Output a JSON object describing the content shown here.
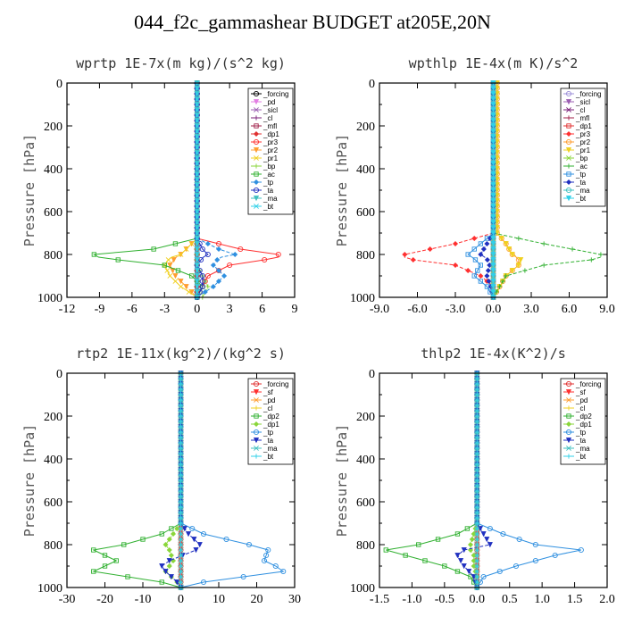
{
  "title": "044_f2c_gammashear  BUDGET at205E,20N",
  "chart_data": [
    {
      "type": "line",
      "title": "wprtp  1E-7x(m kg)/(s^2 kg)",
      "ylabel": "Pressure [hPa]",
      "xlim": [
        -12,
        9
      ],
      "xticks": [
        "-12",
        "-9",
        "-6",
        "-3",
        "0",
        "3",
        "6",
        "9"
      ],
      "xtick_values": [
        -12,
        -9,
        -6,
        -3,
        0,
        3,
        6,
        9
      ],
      "ylim": [
        0,
        1000
      ],
      "yticks": [
        "0",
        "200",
        "400",
        "600",
        "800",
        "1000"
      ],
      "legend_position": "top-right",
      "p": [
        725,
        775,
        800,
        815,
        850,
        900,
        950,
        1000
      ],
      "series": [
        {
          "name": "_forcing",
          "color": "#000000",
          "values": [
            0,
            0,
            0,
            0,
            0,
            0,
            0,
            0
          ]
        },
        {
          "name": "_pd",
          "color": "#e37fe3",
          "values": [
            0,
            0,
            0,
            0,
            0,
            0,
            0,
            0
          ]
        },
        {
          "name": "_sicl",
          "color": "#9c5fb3",
          "values": [
            0,
            0,
            0,
            0,
            0,
            0,
            0,
            0
          ]
        },
        {
          "name": "_cl",
          "color": "#7a1f7a",
          "values": [
            0,
            0,
            0,
            0,
            0,
            0,
            0,
            0
          ]
        },
        {
          "name": "_mfl",
          "color": "#a0204a",
          "values": [
            0,
            0,
            0,
            0,
            0,
            0,
            0,
            0
          ]
        },
        {
          "name": "_dp1",
          "color": "#e03030",
          "values": [
            0,
            0,
            0,
            0,
            0,
            0,
            0,
            0
          ]
        },
        {
          "name": "_pr3",
          "color": "#ff3030",
          "values": [
            0,
            4,
            7.5,
            7.5,
            3,
            1,
            0.5,
            0
          ]
        },
        {
          "name": "_pr2",
          "color": "#ff9d30",
          "values": [
            0,
            -1,
            -1.5,
            -2,
            -2.5,
            -2,
            -1,
            0
          ]
        },
        {
          "name": "_pr1",
          "color": "#f0d020",
          "values": [
            0,
            -1,
            -1.5,
            -2.5,
            -3,
            -2.5,
            -1.5,
            0
          ]
        },
        {
          "name": "_bp",
          "color": "#8ad63a",
          "values": [
            0,
            0,
            0,
            0,
            0,
            0.5,
            1,
            0.5
          ]
        },
        {
          "name": "_ac",
          "color": "#30b030",
          "values": [
            0,
            -4,
            -9.5,
            -9,
            -3,
            -0.5,
            0.5,
            0
          ]
        },
        {
          "name": "_tp",
          "color": "#3090e0",
          "values": [
            0,
            2,
            3.5,
            2,
            1.5,
            2.5,
            1.5,
            0
          ]
        },
        {
          "name": "_ta",
          "color": "#2030c0",
          "values": [
            0,
            0.5,
            1,
            0.5,
            0,
            0.5,
            0.5,
            0
          ]
        },
        {
          "name": "_ma",
          "color": "#40c0c0",
          "values": [
            0,
            0,
            0,
            0,
            0,
            0,
            0,
            0
          ]
        },
        {
          "name": "_bt",
          "color": "#30d0e8",
          "values": [
            0,
            0,
            0,
            0,
            0,
            0,
            0,
            0
          ]
        }
      ]
    },
    {
      "type": "line",
      "title": "wpthlp  1E-4x(m K)/s^2",
      "ylabel": "Pressure [hPa]",
      "xlim": [
        -9,
        9
      ],
      "xticks": [
        "-9.0",
        "-6.0",
        "-3.0",
        "0.0",
        "3.0",
        "6.0",
        "9.0"
      ],
      "xtick_values": [
        -9,
        -6,
        -3,
        0,
        3,
        6,
        9
      ],
      "ylim": [
        0,
        1000
      ],
      "yticks": [
        "0",
        "200",
        "400",
        "600",
        "800",
        "1000"
      ],
      "legend_position": "top-right",
      "p": [
        700,
        750,
        800,
        820,
        850,
        900,
        950,
        1000
      ],
      "series": [
        {
          "name": "_forcing",
          "color": "#9c8fd8",
          "values": [
            0,
            0,
            0,
            0,
            0,
            0,
            0,
            0
          ]
        },
        {
          "name": "_sicl",
          "color": "#9c5fb3",
          "values": [
            0,
            0,
            0,
            0,
            0,
            0,
            0,
            0
          ]
        },
        {
          "name": "_cl",
          "color": "#7a1f7a",
          "values": [
            0,
            0,
            0,
            0,
            0,
            0,
            0,
            0
          ]
        },
        {
          "name": "_mfl",
          "color": "#a0204a",
          "values": [
            0,
            0,
            0,
            0,
            0,
            0,
            0,
            0
          ]
        },
        {
          "name": "_dp1",
          "color": "#e03030",
          "values": [
            0,
            0,
            0,
            0,
            0,
            0,
            0,
            0
          ]
        },
        {
          "name": "_pr3",
          "color": "#ff3030",
          "values": [
            0,
            -3,
            -7,
            -7,
            -3,
            -1,
            0,
            0
          ]
        },
        {
          "name": "_pr2",
          "color": "#ff9d30",
          "values": [
            0.3,
            1,
            1.5,
            2,
            2,
            1,
            0.5,
            0
          ]
        },
        {
          "name": "_pr1",
          "color": "#f0d020",
          "values": [
            0.3,
            1,
            1.5,
            2.2,
            2,
            1,
            0.5,
            0
          ]
        },
        {
          "name": "_bp",
          "color": "#8ad63a",
          "values": [
            0,
            0,
            0,
            0,
            0,
            0,
            0,
            0
          ]
        },
        {
          "name": "_ac",
          "color": "#30b030",
          "values": [
            0,
            4,
            8.5,
            8.5,
            4,
            1,
            0.5,
            0
          ]
        },
        {
          "name": "_tp",
          "color": "#3090e0",
          "values": [
            0,
            -1,
            -2,
            -1.5,
            -1,
            -1.5,
            -0.5,
            0
          ]
        },
        {
          "name": "_ta",
          "color": "#2030c0",
          "values": [
            0,
            -0.5,
            -1,
            -0.5,
            -0.3,
            -0.5,
            -0.2,
            0
          ]
        },
        {
          "name": "_ma",
          "color": "#40c0c0",
          "values": [
            0,
            0,
            0,
            0,
            0,
            0,
            0,
            0
          ]
        },
        {
          "name": "_bt",
          "color": "#30d0e8",
          "values": [
            0,
            0,
            0,
            0,
            0,
            0,
            0,
            0
          ]
        }
      ]
    },
    {
      "type": "line",
      "title": "rtp2  1E-11x(kg^2)/(kg^2 s)",
      "ylabel": "Pressure [hPa]",
      "xlim": [
        -30,
        30
      ],
      "xticks": [
        "-30",
        "-20",
        "-10",
        "0",
        "10",
        "20",
        "30"
      ],
      "xtick_values": [
        -30,
        -20,
        -10,
        0,
        10,
        20,
        30
      ],
      "ylim": [
        0,
        1000
      ],
      "yticks": [
        "0",
        "200",
        "400",
        "600",
        "800",
        "1000"
      ],
      "legend_position": "top-right",
      "p": [
        700,
        750,
        800,
        825,
        875,
        900,
        925,
        975,
        1000
      ],
      "series": [
        {
          "name": "_forcing",
          "color": "#e03030",
          "values": [
            0,
            0,
            0,
            0,
            0,
            0,
            0,
            0,
            0
          ]
        },
        {
          "name": "_sf",
          "color": "#ff3030",
          "values": [
            0,
            0,
            0,
            0,
            0,
            0,
            0,
            0,
            0
          ]
        },
        {
          "name": "_pd",
          "color": "#ff9d30",
          "values": [
            0,
            0,
            0,
            0,
            0,
            0,
            0,
            0,
            0
          ]
        },
        {
          "name": "_cl",
          "color": "#f0d020",
          "values": [
            0,
            0,
            0,
            0,
            0,
            0,
            0,
            0,
            0
          ]
        },
        {
          "name": "_dp2",
          "color": "#30b030",
          "values": [
            0,
            -5,
            -15,
            -23,
            -17,
            -20,
            -23,
            -5,
            0
          ]
        },
        {
          "name": "_dp1",
          "color": "#8ad63a",
          "values": [
            0,
            -2,
            -4,
            -3,
            -2,
            -3,
            -4,
            -1,
            0
          ]
        },
        {
          "name": "_tp",
          "color": "#3090e0",
          "values": [
            0,
            6,
            18,
            23,
            22,
            25,
            27,
            6,
            0
          ]
        },
        {
          "name": "_ta",
          "color": "#2030c0",
          "values": [
            0,
            2,
            5,
            4,
            -3,
            -5,
            -4,
            -1,
            0
          ]
        },
        {
          "name": "_ma",
          "color": "#40c0c0",
          "values": [
            0,
            0,
            0,
            0,
            0,
            0,
            0,
            0,
            0
          ]
        },
        {
          "name": "_bt",
          "color": "#30d0e8",
          "values": [
            0,
            0,
            0,
            0,
            0,
            0,
            0,
            0,
            0
          ]
        }
      ]
    },
    {
      "type": "line",
      "title": "thlp2  1E-4x(K^2)/s",
      "ylabel": "Pressure [hPa]",
      "xlim": [
        -1.5,
        2.0
      ],
      "xticks": [
        "-1.5",
        "-1.0",
        "-0.5",
        "0.0",
        "0.5",
        "1.0",
        "1.5",
        "2.0"
      ],
      "xtick_values": [
        -1.5,
        -1.0,
        -0.5,
        0.0,
        0.5,
        1.0,
        1.5,
        2.0
      ],
      "ylim": [
        0,
        1000
      ],
      "yticks": [
        "0",
        "200",
        "400",
        "600",
        "800",
        "1000"
      ],
      "legend_position": "top-right",
      "p": [
        700,
        750,
        800,
        825,
        850,
        900,
        950,
        1000
      ],
      "series": [
        {
          "name": "_forcing",
          "color": "#e03030",
          "values": [
            0,
            0,
            0,
            0,
            0,
            0,
            0,
            0
          ]
        },
        {
          "name": "_sf",
          "color": "#ff3030",
          "values": [
            0,
            0,
            0,
            0,
            0,
            0,
            0,
            0
          ]
        },
        {
          "name": "_pd",
          "color": "#ff9d30",
          "values": [
            0,
            0,
            0,
            0,
            0,
            0,
            0,
            0
          ]
        },
        {
          "name": "_cl",
          "color": "#f0d020",
          "values": [
            0,
            0,
            0,
            0,
            0,
            0,
            0,
            0
          ]
        },
        {
          "name": "_dp2",
          "color": "#30b030",
          "values": [
            0,
            -0.3,
            -0.9,
            -1.4,
            -1.1,
            -0.5,
            -0.1,
            0
          ]
        },
        {
          "name": "_dp1",
          "color": "#8ad63a",
          "values": [
            0,
            -0.05,
            -0.1,
            -0.1,
            -0.05,
            -0.05,
            0,
            0
          ]
        },
        {
          "name": "_tp",
          "color": "#3090e0",
          "values": [
            0,
            0.4,
            0.9,
            1.6,
            1.2,
            0.6,
            0.1,
            0
          ]
        },
        {
          "name": "_ta",
          "color": "#2030c0",
          "values": [
            0,
            0.1,
            0.2,
            -0.2,
            -0.3,
            -0.2,
            -0.05,
            0
          ]
        },
        {
          "name": "_ma",
          "color": "#40c0c0",
          "values": [
            0,
            0,
            0,
            0,
            0,
            0,
            0,
            0
          ]
        },
        {
          "name": "_bt",
          "color": "#30d0e8",
          "values": [
            0,
            0,
            0,
            0,
            0,
            0,
            0,
            0
          ]
        }
      ]
    }
  ]
}
